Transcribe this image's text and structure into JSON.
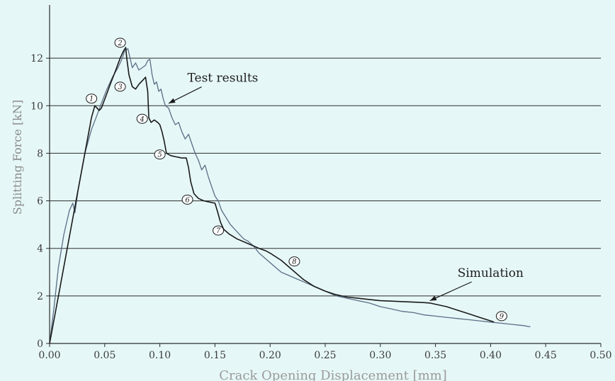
{
  "chart_data": {
    "type": "line",
    "xlabel": "Crack Opening Displacement [mm]",
    "ylabel": "Splitting Force [kN]",
    "xlim": [
      0,
      0.5
    ],
    "ylim": [
      0,
      14
    ],
    "x_ticks": [
      "0.00",
      "0.05",
      "0.10",
      "0.15",
      "0.20",
      "0.25",
      "0.30",
      "0.35",
      "0.40",
      "0.45",
      "0.50"
    ],
    "y_ticks": [
      "0",
      "2",
      "4",
      "6",
      "8",
      "10",
      "12"
    ],
    "grid": "horizontal",
    "series": [
      {
        "name": "Test results",
        "color": "#5a6e86",
        "points": [
          [
            0,
            0
          ],
          [
            0.004,
            1.5
          ],
          [
            0.008,
            3.2
          ],
          [
            0.013,
            4.6
          ],
          [
            0.018,
            5.6
          ],
          [
            0.021,
            5.9
          ],
          [
            0.023,
            5.5
          ],
          [
            0.026,
            6.5
          ],
          [
            0.032,
            8.0
          ],
          [
            0.038,
            9.0
          ],
          [
            0.043,
            9.6
          ],
          [
            0.047,
            10.1
          ],
          [
            0.052,
            10.7
          ],
          [
            0.057,
            11.2
          ],
          [
            0.062,
            11.6
          ],
          [
            0.066,
            12.0
          ],
          [
            0.068,
            12.3
          ],
          [
            0.071,
            12.4
          ],
          [
            0.073,
            12.0
          ],
          [
            0.075,
            11.6
          ],
          [
            0.078,
            11.8
          ],
          [
            0.081,
            11.5
          ],
          [
            0.084,
            11.6
          ],
          [
            0.087,
            11.7
          ],
          [
            0.089,
            11.9
          ],
          [
            0.091,
            11.95
          ],
          [
            0.093,
            11.3
          ],
          [
            0.095,
            10.9
          ],
          [
            0.097,
            11.0
          ],
          [
            0.099,
            10.6
          ],
          [
            0.101,
            10.7
          ],
          [
            0.103,
            10.3
          ],
          [
            0.105,
            10.0
          ],
          [
            0.108,
            9.9
          ],
          [
            0.111,
            9.5
          ],
          [
            0.114,
            9.2
          ],
          [
            0.117,
            9.3
          ],
          [
            0.12,
            8.9
          ],
          [
            0.123,
            8.6
          ],
          [
            0.126,
            8.8
          ],
          [
            0.129,
            8.4
          ],
          [
            0.132,
            8.0
          ],
          [
            0.135,
            7.7
          ],
          [
            0.138,
            7.3
          ],
          [
            0.141,
            7.5
          ],
          [
            0.144,
            7.0
          ],
          [
            0.147,
            6.6
          ],
          [
            0.15,
            6.2
          ],
          [
            0.153,
            6.0
          ],
          [
            0.156,
            5.6
          ],
          [
            0.16,
            5.3
          ],
          [
            0.164,
            5.0
          ],
          [
            0.168,
            4.8
          ],
          [
            0.172,
            4.6
          ],
          [
            0.176,
            4.4
          ],
          [
            0.18,
            4.3
          ],
          [
            0.185,
            4.1
          ],
          [
            0.19,
            3.8
          ],
          [
            0.195,
            3.6
          ],
          [
            0.2,
            3.4
          ],
          [
            0.205,
            3.2
          ],
          [
            0.21,
            3.0
          ],
          [
            0.215,
            2.9
          ],
          [
            0.22,
            2.8
          ],
          [
            0.225,
            2.7
          ],
          [
            0.23,
            2.6
          ],
          [
            0.24,
            2.4
          ],
          [
            0.25,
            2.2
          ],
          [
            0.26,
            2.0
          ],
          [
            0.27,
            1.9
          ],
          [
            0.28,
            1.8
          ],
          [
            0.29,
            1.7
          ],
          [
            0.3,
            1.55
          ],
          [
            0.31,
            1.45
          ],
          [
            0.32,
            1.35
          ],
          [
            0.33,
            1.3
          ],
          [
            0.34,
            1.2
          ],
          [
            0.35,
            1.15
          ],
          [
            0.36,
            1.1
          ],
          [
            0.37,
            1.05
          ],
          [
            0.38,
            1.0
          ],
          [
            0.39,
            0.95
          ],
          [
            0.4,
            0.9
          ],
          [
            0.41,
            0.85
          ],
          [
            0.42,
            0.8
          ],
          [
            0.43,
            0.75
          ],
          [
            0.436,
            0.7
          ]
        ]
      },
      {
        "name": "Simulation",
        "color": "#1a1a1a",
        "points": [
          [
            0,
            0
          ],
          [
            0.01,
            2.5
          ],
          [
            0.02,
            5.0
          ],
          [
            0.03,
            7.5
          ],
          [
            0.038,
            9.5
          ],
          [
            0.041,
            10.0
          ],
          [
            0.043,
            9.9
          ],
          [
            0.045,
            9.8
          ],
          [
            0.047,
            9.9
          ],
          [
            0.051,
            10.4
          ],
          [
            0.055,
            10.9
          ],
          [
            0.06,
            11.5
          ],
          [
            0.064,
            12.0
          ],
          [
            0.067,
            12.3
          ],
          [
            0.069,
            12.45
          ],
          [
            0.07,
            12.0
          ],
          [
            0.072,
            11.3
          ],
          [
            0.075,
            10.8
          ],
          [
            0.078,
            10.7
          ],
          [
            0.081,
            10.9
          ],
          [
            0.085,
            11.1
          ],
          [
            0.087,
            11.2
          ],
          [
            0.089,
            10.6
          ],
          [
            0.09,
            9.5
          ],
          [
            0.092,
            9.3
          ],
          [
            0.095,
            9.4
          ],
          [
            0.098,
            9.3
          ],
          [
            0.1,
            9.2
          ],
          [
            0.102,
            8.9
          ],
          [
            0.104,
            8.5
          ],
          [
            0.106,
            8.0
          ],
          [
            0.11,
            7.9
          ],
          [
            0.115,
            7.85
          ],
          [
            0.12,
            7.8
          ],
          [
            0.124,
            7.8
          ],
          [
            0.126,
            7.4
          ],
          [
            0.128,
            6.8
          ],
          [
            0.131,
            6.3
          ],
          [
            0.135,
            6.1
          ],
          [
            0.14,
            6.0
          ],
          [
            0.145,
            5.95
          ],
          [
            0.15,
            5.9
          ],
          [
            0.152,
            5.6
          ],
          [
            0.155,
            5.1
          ],
          [
            0.158,
            4.8
          ],
          [
            0.163,
            4.6
          ],
          [
            0.17,
            4.4
          ],
          [
            0.18,
            4.2
          ],
          [
            0.19,
            4.0
          ],
          [
            0.196,
            3.9
          ],
          [
            0.2,
            3.8
          ],
          [
            0.21,
            3.5
          ],
          [
            0.22,
            3.1
          ],
          [
            0.23,
            2.7
          ],
          [
            0.24,
            2.4
          ],
          [
            0.25,
            2.2
          ],
          [
            0.26,
            2.05
          ],
          [
            0.27,
            1.95
          ],
          [
            0.28,
            1.9
          ],
          [
            0.29,
            1.85
          ],
          [
            0.3,
            1.8
          ],
          [
            0.31,
            1.78
          ],
          [
            0.32,
            1.76
          ],
          [
            0.33,
            1.74
          ],
          [
            0.34,
            1.72
          ],
          [
            0.345,
            1.7
          ],
          [
            0.35,
            1.65
          ],
          [
            0.36,
            1.55
          ],
          [
            0.37,
            1.4
          ],
          [
            0.38,
            1.25
          ],
          [
            0.39,
            1.1
          ],
          [
            0.4,
            0.95
          ],
          [
            0.403,
            0.9
          ]
        ]
      }
    ],
    "annotations": [
      {
        "text": "Test results",
        "x": 0.125,
        "y": 11.0,
        "target": [
          0.108,
          10.1
        ]
      },
      {
        "text": "Simulation",
        "x": 0.37,
        "y": 2.8,
        "target": [
          0.345,
          1.8
        ]
      }
    ],
    "markers": [
      {
        "label": "1",
        "x": 0.038,
        "y": 10.3
      },
      {
        "label": "2",
        "x": 0.064,
        "y": 12.65
      },
      {
        "label": "3",
        "x": 0.064,
        "y": 10.8
      },
      {
        "label": "4",
        "x": 0.084,
        "y": 9.45
      },
      {
        "label": "5",
        "x": 0.1,
        "y": 7.95
      },
      {
        "label": "6",
        "x": 0.125,
        "y": 6.05
      },
      {
        "label": "7",
        "x": 0.153,
        "y": 4.75
      },
      {
        "label": "8",
        "x": 0.222,
        "y": 3.45
      },
      {
        "label": "9",
        "x": 0.41,
        "y": 1.15
      }
    ]
  }
}
